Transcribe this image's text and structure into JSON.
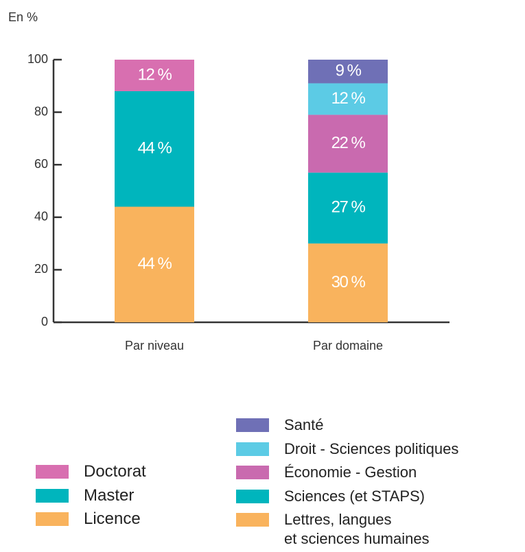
{
  "chart_data": {
    "type": "bar",
    "stacked": true,
    "y_label": "En %",
    "categories": [
      "Par niveau",
      "Par domaine"
    ],
    "series": [
      {
        "name": "Doctorat",
        "color": "#d86fb0",
        "values": [
          12,
          null
        ],
        "value_labels": [
          "12 %",
          null
        ]
      },
      {
        "name": "Master",
        "color": "#00b5bd",
        "values": [
          44,
          null
        ],
        "value_labels": [
          "44 %",
          null
        ]
      },
      {
        "name": "Licence",
        "color": "#f9b35d",
        "values": [
          44,
          null
        ],
        "value_labels": [
          "44 %",
          null
        ]
      },
      {
        "name": "Santé",
        "color": "#6f70b6",
        "values": [
          null,
          9
        ],
        "value_labels": [
          null,
          "9 %"
        ]
      },
      {
        "name": "Droit - Sciences politiques",
        "color": "#5ccbe5",
        "values": [
          null,
          12
        ],
        "value_labels": [
          null,
          "12 %"
        ]
      },
      {
        "name": "Économie - Gestion",
        "color": "#c96aaf",
        "values": [
          null,
          22
        ],
        "value_labels": [
          null,
          "22 %"
        ]
      },
      {
        "name": "Sciences (et STAPS)",
        "color": "#00b5bd",
        "values": [
          null,
          27
        ],
        "value_labels": [
          null,
          "27 %"
        ]
      },
      {
        "name": "Lettres, langues\net sciences humaines",
        "color": "#f9b35d",
        "values": [
          null,
          30
        ],
        "value_labels": [
          null,
          "30 %"
        ]
      }
    ],
    "ylim": [
      0,
      100
    ],
    "yticks": [
      0,
      20,
      40,
      60,
      80,
      100
    ]
  }
}
